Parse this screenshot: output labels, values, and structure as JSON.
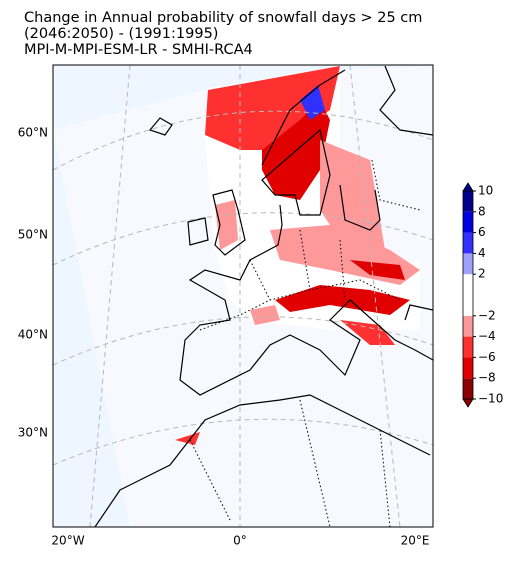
{
  "title": [
    "Change in Annual probability of snowfall days > 25 cm",
    "(2046:2050) - (1991:1995)",
    "MPI-M-MPI-ESM-LR - SMHI-RCA4"
  ],
  "map": {
    "lat_labels": [
      "60°N",
      "50°N",
      "40°N",
      "30°N"
    ],
    "lon_labels": [
      "20°W",
      "0°",
      "20°E"
    ]
  },
  "colorbar": {
    "ticks": [
      {
        "value": -10,
        "label": "−10"
      },
      {
        "value": -8,
        "label": "−8"
      },
      {
        "value": -6,
        "label": "−6"
      },
      {
        "value": -4,
        "label": "−4"
      },
      {
        "value": -2,
        "label": "−2"
      },
      2,
      4,
      6,
      8,
      10
    ],
    "colors": [
      "#8b0000",
      "#e00000",
      "#ff3030",
      "#ff9999",
      "#ffffff",
      "#a0a0ff",
      "#3030ff",
      "#0000e0",
      "#00008b"
    ]
  }
}
